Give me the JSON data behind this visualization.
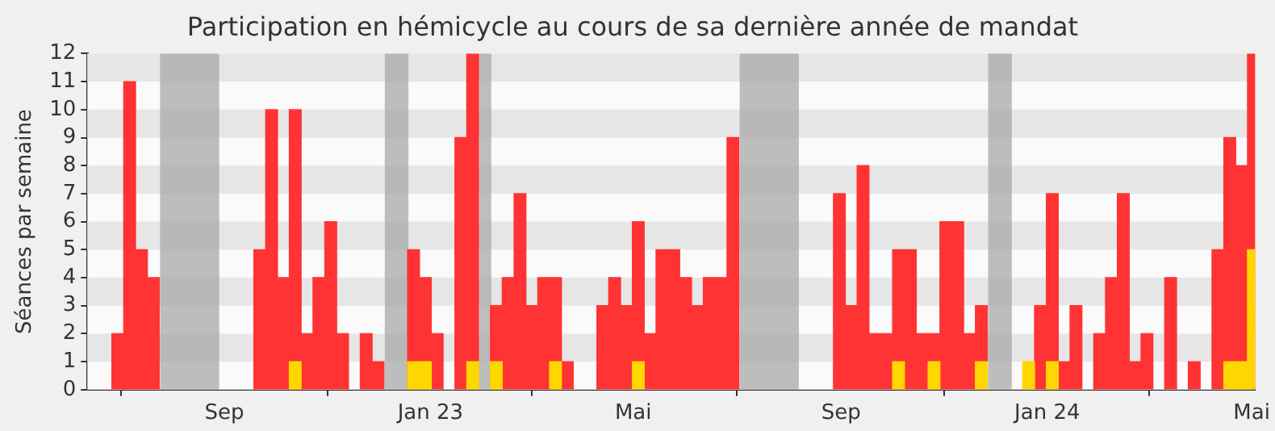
{
  "chart_data": {
    "type": "bar",
    "title": "Participation en hémicycle au cours de sa dernière année de mandat",
    "ylabel": "Séances par semaine",
    "x": [
      "2022-06-30",
      "2022-07-07",
      "2022-07-14",
      "2022-07-21",
      "2022-09-22",
      "2022-09-29",
      "2022-10-06",
      "2022-10-13",
      "2022-10-20",
      "2022-10-27",
      "2022-11-03",
      "2022-11-10",
      "2022-11-24",
      "2022-12-01",
      "2022-12-22",
      "2022-12-29",
      "2023-01-05",
      "2023-01-19",
      "2023-01-26",
      "2023-02-09",
      "2023-02-16",
      "2023-02-23",
      "2023-03-02",
      "2023-03-09",
      "2023-03-16",
      "2023-03-23",
      "2023-04-13",
      "2023-04-20",
      "2023-04-27",
      "2023-05-04",
      "2023-05-11",
      "2023-05-18",
      "2023-05-25",
      "2023-06-01",
      "2023-06-08",
      "2023-06-15",
      "2023-06-22",
      "2023-06-29",
      "2023-08-31",
      "2023-09-07",
      "2023-09-14",
      "2023-09-21",
      "2023-09-28",
      "2023-10-05",
      "2023-10-12",
      "2023-10-19",
      "2023-10-26",
      "2023-11-02",
      "2023-11-09",
      "2023-11-16",
      "2023-11-23",
      "2023-12-21",
      "2023-12-28",
      "2024-01-04",
      "2024-01-11",
      "2024-01-18",
      "2024-02-01",
      "2024-02-08",
      "2024-02-15",
      "2024-02-22",
      "2024-02-29",
      "2024-03-14",
      "2024-03-28",
      "2024-04-11",
      "2024-04-18",
      "2024-04-25",
      "2024-05-02"
    ],
    "series": [
      {
        "color": "#ff3333",
        "values": [
          2,
          11,
          5,
          4,
          5,
          10,
          4,
          10,
          2,
          4,
          6,
          2,
          2,
          1,
          5,
          4,
          2,
          9,
          12,
          3,
          4,
          7,
          3,
          4,
          4,
          1,
          3,
          4,
          3,
          6,
          2,
          5,
          5,
          4,
          3,
          4,
          4,
          9,
          7,
          3,
          8,
          2,
          2,
          5,
          5,
          2,
          2,
          6,
          6,
          2,
          3,
          null,
          3,
          7,
          1,
          3,
          2,
          4,
          7,
          1,
          2,
          4,
          1,
          5,
          9,
          8,
          12
        ]
      },
      {
        "color": "#ffd700",
        "x": [
          "2022-10-13",
          "2022-12-22",
          "2022-12-29",
          "2023-01-26",
          "2023-02-09",
          "2023-03-16",
          "2023-05-04",
          "2023-10-05",
          "2023-10-26",
          "2023-11-23",
          "2023-12-21",
          "2024-01-04",
          "2024-04-18",
          "2024-04-25",
          "2024-05-02"
        ],
        "values": [
          1,
          1,
          1,
          1,
          1,
          1,
          1,
          1,
          1,
          1,
          1,
          1,
          1,
          1,
          5
        ]
      }
    ],
    "xlim": [
      "2022-06-12",
      "2024-05-03"
    ],
    "xticks": [
      {
        "value": "2022-09-01",
        "label": "Sep"
      },
      {
        "value": "2023-01-01",
        "label": "Jan 23"
      },
      {
        "value": "2023-05-01",
        "label": "Mai"
      },
      {
        "value": "2023-09-01",
        "label": "Sep"
      },
      {
        "value": "2024-01-01",
        "label": "Jan 24"
      },
      {
        "value": "2024-05-01",
        "label": "Mai"
      }
    ],
    "ylim": [
      0,
      12
    ],
    "yticks": [
      0,
      1,
      2,
      3,
      4,
      5,
      6,
      7,
      8,
      9,
      10,
      11,
      12
    ],
    "bands": [
      {
        "axis": "x",
        "from": "2022-07-25",
        "to": "2022-08-29",
        "color": "#a8a8a8"
      },
      {
        "axis": "x",
        "from": "2022-12-05",
        "to": "2022-12-19",
        "color": "#a8a8a8"
      },
      {
        "axis": "x",
        "from": "2023-01-30",
        "to": "2023-02-06",
        "color": "#a8a8a8"
      },
      {
        "axis": "x",
        "from": "2023-07-03",
        "to": "2023-08-07",
        "color": "#a8a8a8"
      },
      {
        "axis": "x",
        "from": "2023-11-27",
        "to": "2023-12-11",
        "color": "#a8a8a8"
      }
    ]
  }
}
